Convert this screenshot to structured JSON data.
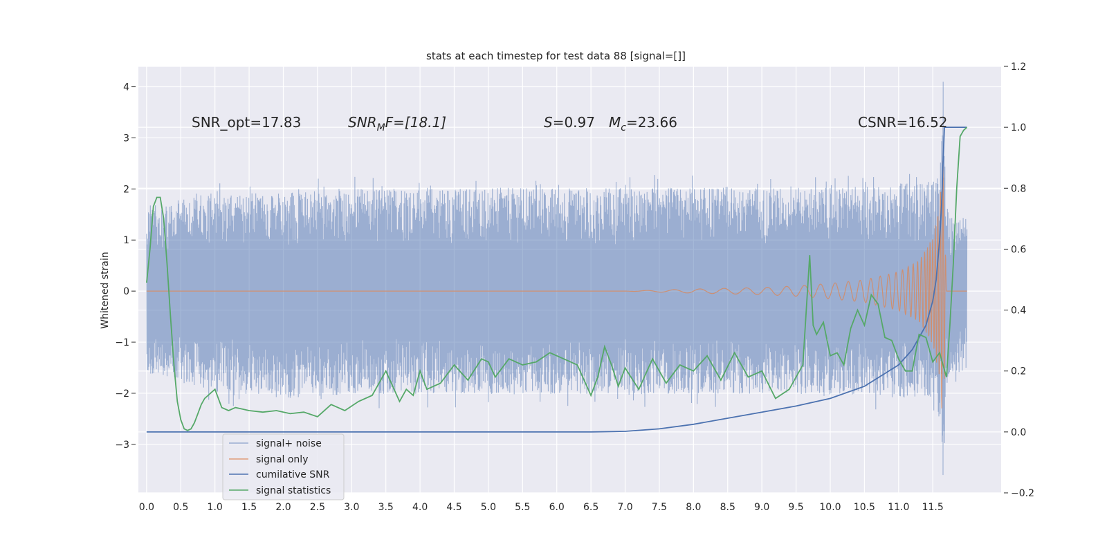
{
  "chart_data": {
    "type": "line",
    "title": "stats at each timestep for test data 88 [signal=[]]",
    "ylabel": "Whitened strain",
    "xlim": [
      -0.12,
      12.5
    ],
    "ylim": [
      -3.95,
      4.4
    ],
    "y2lim": [
      -0.2,
      1.2
    ],
    "x_ticks": [
      0.0,
      0.5,
      1.0,
      1.5,
      2.0,
      2.5,
      3.0,
      3.5,
      4.0,
      4.5,
      5.0,
      5.5,
      6.0,
      6.5,
      7.0,
      7.5,
      8.0,
      8.5,
      9.0,
      9.5,
      10.0,
      10.5,
      11.0,
      11.5
    ],
    "x_tick_labels": [
      "0.0",
      "0.5",
      "1.0",
      "1.5",
      "2.0",
      "2.5",
      "3.0",
      "3.5",
      "4.0",
      "4.5",
      "5.0",
      "5.5",
      "6.0",
      "6.5",
      "7.0",
      "7.5",
      "8.0",
      "8.5",
      "9.0",
      "9.5",
      "10.0",
      "10.5",
      "11.0",
      "11.5"
    ],
    "y_ticks": [
      4,
      3,
      2,
      1,
      0,
      -1,
      -2,
      -3
    ],
    "y_tick_labels": [
      "4",
      "3",
      "2",
      "1",
      "0",
      "−1",
      "−2",
      "−3"
    ],
    "y2_ticks": [
      1.2,
      1.0,
      0.8,
      0.6,
      0.4,
      0.2,
      0.0,
      -0.2
    ],
    "y2_tick_labels": [
      "1.2",
      "1.0",
      "0.8",
      "0.6",
      "0.4",
      "0.2",
      "0.0",
      "−0.2"
    ],
    "grid": true,
    "legend_position": "bottom-left",
    "annotations": {
      "snr_opt": "SNR_opt=17.83",
      "snr_mf": {
        "base": "SNR",
        "sub": "M",
        "rest": "F=[18.1]"
      },
      "s_value": {
        "sym": "S",
        "rest": "=0.97"
      },
      "mc_value": {
        "sym": "M",
        "sub": "c",
        "rest": "=23.66"
      },
      "csnr": "CSNR=16.52"
    },
    "series": [
      {
        "name": "signal+ noise",
        "axis": "left",
        "color": "#4c72b0",
        "opacity": 0.5,
        "envelope": {
          "x": [
            0.0,
            1.0,
            2.0,
            3.0,
            4.0,
            5.0,
            6.0,
            7.0,
            8.0,
            9.0,
            10.0,
            10.5,
            11.0,
            11.3,
            11.5,
            11.6,
            11.65,
            11.7,
            11.75,
            12.0
          ],
          "upper": [
            1.9,
            2.2,
            2.2,
            2.3,
            2.3,
            2.3,
            2.3,
            2.3,
            2.3,
            2.3,
            2.3,
            2.35,
            2.4,
            2.4,
            2.45,
            2.6,
            4.1,
            2.0,
            1.7,
            1.7
          ],
          "lower": [
            -1.9,
            -2.2,
            -2.4,
            -2.3,
            -2.3,
            -2.3,
            -2.3,
            -2.3,
            -2.3,
            -2.3,
            -2.3,
            -2.3,
            -2.4,
            -2.4,
            -2.5,
            -3.0,
            -3.6,
            -2.2,
            -1.8,
            -1.8
          ]
        }
      },
      {
        "name": "signal only",
        "axis": "left",
        "color": "#dd8452",
        "amplitude": {
          "x": [
            0.0,
            7.0,
            8.0,
            9.0,
            9.5,
            10.0,
            10.5,
            11.0,
            11.3,
            11.5,
            11.6,
            11.65,
            11.7,
            12.0
          ],
          "y": [
            0.0,
            0.0,
            0.04,
            0.07,
            0.1,
            0.15,
            0.22,
            0.38,
            0.6,
            1.05,
            1.7,
            2.7,
            0.0,
            0.0
          ]
        }
      },
      {
        "name": "cumilative SNR",
        "axis": "right",
        "color": "#4c72b0",
        "x": [
          0.0,
          5.0,
          6.5,
          7.0,
          7.5,
          8.0,
          8.5,
          9.0,
          9.5,
          10.0,
          10.5,
          11.0,
          11.2,
          11.4,
          11.5,
          11.55,
          11.6,
          11.63,
          11.65,
          11.67,
          12.0
        ],
        "y": [
          0.0,
          0.0,
          0.0,
          0.002,
          0.01,
          0.025,
          0.045,
          0.065,
          0.085,
          0.11,
          0.15,
          0.22,
          0.27,
          0.35,
          0.43,
          0.5,
          0.63,
          0.75,
          0.88,
          1.0,
          1.0
        ]
      },
      {
        "name": "signal statistics",
        "axis": "right",
        "color": "#55a868",
        "x": [
          0.0,
          0.05,
          0.1,
          0.15,
          0.2,
          0.25,
          0.3,
          0.35,
          0.4,
          0.45,
          0.5,
          0.55,
          0.6,
          0.65,
          0.7,
          0.75,
          0.8,
          0.85,
          0.9,
          0.95,
          1.0,
          1.1,
          1.2,
          1.3,
          1.4,
          1.5,
          1.7,
          1.9,
          2.1,
          2.3,
          2.5,
          2.7,
          2.9,
          3.1,
          3.3,
          3.5,
          3.6,
          3.7,
          3.8,
          3.9,
          4.0,
          4.1,
          4.3,
          4.5,
          4.7,
          4.9,
          5.0,
          5.1,
          5.3,
          5.5,
          5.7,
          5.9,
          6.1,
          6.3,
          6.5,
          6.6,
          6.7,
          6.8,
          6.9,
          7.0,
          7.2,
          7.4,
          7.6,
          7.8,
          8.0,
          8.2,
          8.4,
          8.6,
          8.8,
          9.0,
          9.2,
          9.4,
          9.6,
          9.7,
          9.75,
          9.8,
          9.9,
          10.0,
          10.1,
          10.2,
          10.3,
          10.4,
          10.5,
          10.6,
          10.7,
          10.8,
          10.9,
          11.0,
          11.1,
          11.2,
          11.3,
          11.4,
          11.5,
          11.6,
          11.65,
          11.7,
          11.75,
          11.8,
          11.85,
          11.9,
          11.95,
          12.0
        ],
        "y": [
          0.49,
          0.6,
          0.74,
          0.77,
          0.77,
          0.7,
          0.55,
          0.38,
          0.22,
          0.1,
          0.04,
          0.01,
          0.005,
          0.01,
          0.03,
          0.06,
          0.09,
          0.11,
          0.12,
          0.13,
          0.14,
          0.08,
          0.07,
          0.08,
          0.075,
          0.07,
          0.065,
          0.07,
          0.06,
          0.065,
          0.05,
          0.09,
          0.07,
          0.1,
          0.12,
          0.2,
          0.15,
          0.1,
          0.14,
          0.12,
          0.2,
          0.14,
          0.16,
          0.22,
          0.17,
          0.24,
          0.23,
          0.18,
          0.24,
          0.22,
          0.23,
          0.26,
          0.24,
          0.22,
          0.12,
          0.18,
          0.28,
          0.22,
          0.15,
          0.21,
          0.14,
          0.24,
          0.16,
          0.22,
          0.2,
          0.25,
          0.17,
          0.26,
          0.18,
          0.2,
          0.11,
          0.14,
          0.22,
          0.58,
          0.35,
          0.32,
          0.36,
          0.25,
          0.26,
          0.22,
          0.34,
          0.4,
          0.35,
          0.45,
          0.42,
          0.31,
          0.3,
          0.24,
          0.2,
          0.2,
          0.32,
          0.31,
          0.23,
          0.26,
          0.22,
          0.18,
          0.35,
          0.55,
          0.8,
          0.97,
          0.99,
          1.0
        ]
      }
    ]
  }
}
